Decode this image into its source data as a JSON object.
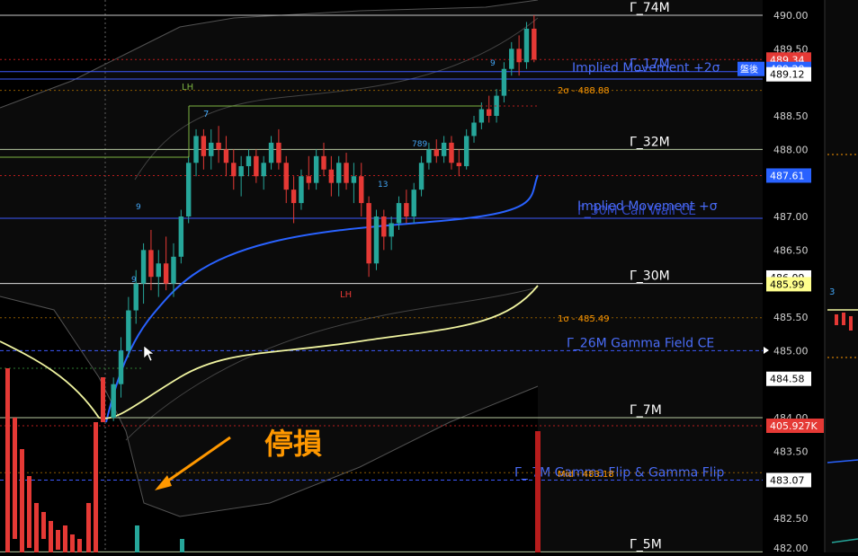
{
  "chart_data": {
    "type": "candlestick",
    "y_axis": {
      "min": 481.95,
      "max": 490.1,
      "position": "right",
      "ticks": [
        "490.00",
        "489.50",
        "488.50",
        "488.00",
        "487.61",
        "487.00",
        "486.50",
        "486.09",
        "485.99",
        "485.50",
        "485.00",
        "484.58",
        "484.00",
        "483.50",
        "483.07",
        "482.50"
      ],
      "tick_values": [
        490.0,
        489.5,
        488.5,
        488.0,
        487.61,
        487.0,
        486.5,
        486.09,
        485.99,
        485.5,
        485.0,
        484.58,
        484.0,
        483.5,
        483.07,
        482.5
      ]
    },
    "price_badges": [
      {
        "label": "489.34",
        "value": 489.34,
        "bg": "#e53935",
        "fg": "#ffffff"
      },
      {
        "label": "489.20",
        "value": 489.2,
        "bg": "#2962ff",
        "fg": "#ffffff",
        "tag": "盤後"
      },
      {
        "label": "489.12",
        "value": 489.12,
        "bg": "#ffffff",
        "fg": "#000000"
      },
      {
        "label": "487.61",
        "value": 487.61,
        "bg": "#2962ff",
        "fg": "#ffffff"
      },
      {
        "label": "486.09",
        "value": 486.09,
        "bg": "#ffffff",
        "fg": "#000000"
      },
      {
        "label": "485.99",
        "value": 485.99,
        "bg": "#ffff8d",
        "fg": "#000000"
      },
      {
        "label": "484.58",
        "value": 484.58,
        "bg": "#ffffff",
        "fg": "#000000"
      },
      {
        "label": "405.927K",
        "value": 483.88,
        "bg": "#e53935",
        "fg": "#ffffff"
      },
      {
        "label": "483.07",
        "value": 483.07,
        "bg": "#ffffff",
        "fg": "#000000"
      }
    ],
    "levels": [
      {
        "label": "Γ_74M",
        "value": 490.0,
        "color": "#c8c8c8",
        "style": "solid",
        "text_color": "#ffffff"
      },
      {
        "label": "Γ_17M",
        "value": 489.16,
        "color": "#3d5afe",
        "style": "solid",
        "text_color": "#4a6cf7"
      },
      {
        "label": "Γ_32M",
        "value": 488.0,
        "color": "#b7c9a0",
        "style": "solid",
        "text_color": "#ffffff"
      },
      {
        "label": "Γ_30M",
        "value": 486.0,
        "color": "#dddddd",
        "style": "solid",
        "text_color": "#ffffff"
      },
      {
        "label": "Γ_26M  Gamma Field CE",
        "value": 485.0,
        "color": "#3d5afe",
        "style": "dashed",
        "text_color": "#4a6cf7"
      },
      {
        "label": "Γ_7M",
        "value": 484.0,
        "color": "#b7c9a0",
        "style": "solid",
        "text_color": "#ffffff"
      },
      {
        "label": "Γ_ 7M  Gamma Flip & Gamma Flip",
        "value": 483.07,
        "color": "#3d5afe",
        "style": "dashed",
        "text_color": "#4a6cf7"
      },
      {
        "label": "Γ_5M",
        "value": 482.0,
        "color": "#b7c9a0",
        "style": "solid",
        "text_color": "#ffffff"
      }
    ],
    "overlay_labels": [
      {
        "label": "Implied Movement +2σ",
        "value": 489.34,
        "color": "#4a6cf7"
      },
      {
        "label": "Implied Movement +σ",
        "value": 487.12,
        "color": "#4a6cf7"
      },
      {
        "label": "Γ_30M  Call Wall CE",
        "value": 487.03,
        "color": "#3d5afe"
      }
    ],
    "sigma_labels": [
      {
        "label": "2σ - 488.88",
        "value": 488.88,
        "color": "#ff9800"
      },
      {
        "label": "1σ - 485.49",
        "value": 485.49,
        "color": "#ff9800"
      },
      {
        "label": "Mid - 483.18",
        "value": 483.18,
        "color": "#ff9800"
      }
    ],
    "marker_labels": [
      {
        "label": "LH",
        "color": "#7cb342"
      },
      {
        "label": "LH",
        "color": "#e53935"
      },
      {
        "label": "7",
        "color": "#42a5f5"
      },
      {
        "label": "9",
        "color": "#42a5f5"
      },
      {
        "label": "9",
        "color": "#42a5f5"
      },
      {
        "label": "13",
        "color": "#42a5f5"
      },
      {
        "label": "789",
        "color": "#42a5f5"
      },
      {
        "label": "9",
        "color": "#42a5f5"
      },
      {
        "label": "3",
        "color": "#42a5f5"
      }
    ],
    "annotation": {
      "text": "停損",
      "color": "#ff9800"
    },
    "candles": [
      {
        "o": 484.0,
        "h": 484.6,
        "l": 483.95,
        "c": 484.5
      },
      {
        "o": 484.5,
        "h": 485.2,
        "l": 484.3,
        "c": 485.0
      },
      {
        "o": 485.0,
        "h": 485.8,
        "l": 484.9,
        "c": 485.6
      },
      {
        "o": 485.6,
        "h": 486.2,
        "l": 485.4,
        "c": 486.0
      },
      {
        "o": 486.0,
        "h": 486.6,
        "l": 485.7,
        "c": 486.5
      },
      {
        "o": 486.5,
        "h": 486.8,
        "l": 485.9,
        "c": 486.1
      },
      {
        "o": 486.1,
        "h": 486.5,
        "l": 485.8,
        "c": 486.3
      },
      {
        "o": 486.3,
        "h": 486.7,
        "l": 485.9,
        "c": 486.0
      },
      {
        "o": 486.0,
        "h": 486.6,
        "l": 485.8,
        "c": 486.4
      },
      {
        "o": 486.4,
        "h": 487.1,
        "l": 486.3,
        "c": 487.0
      },
      {
        "o": 487.0,
        "h": 487.9,
        "l": 486.9,
        "c": 487.8
      },
      {
        "o": 487.8,
        "h": 488.3,
        "l": 487.6,
        "c": 488.2
      },
      {
        "o": 488.2,
        "h": 488.3,
        "l": 487.7,
        "c": 487.9
      },
      {
        "o": 487.9,
        "h": 488.3,
        "l": 487.7,
        "c": 488.1
      },
      {
        "o": 488.1,
        "h": 488.35,
        "l": 487.8,
        "c": 488.0
      },
      {
        "o": 488.0,
        "h": 488.2,
        "l": 487.6,
        "c": 487.8
      },
      {
        "o": 487.8,
        "h": 488.0,
        "l": 487.4,
        "c": 487.6
      },
      {
        "o": 487.6,
        "h": 487.9,
        "l": 487.3,
        "c": 487.75
      },
      {
        "o": 487.75,
        "h": 488.0,
        "l": 487.6,
        "c": 487.9
      },
      {
        "o": 487.9,
        "h": 488.0,
        "l": 487.5,
        "c": 487.6
      },
      {
        "o": 487.6,
        "h": 487.9,
        "l": 487.4,
        "c": 487.8
      },
      {
        "o": 487.8,
        "h": 488.2,
        "l": 487.7,
        "c": 488.1
      },
      {
        "o": 488.1,
        "h": 488.3,
        "l": 487.7,
        "c": 487.8
      },
      {
        "o": 487.8,
        "h": 487.9,
        "l": 487.2,
        "c": 487.4
      },
      {
        "o": 487.4,
        "h": 487.6,
        "l": 486.9,
        "c": 487.2
      },
      {
        "o": 487.2,
        "h": 487.7,
        "l": 487.1,
        "c": 487.6
      },
      {
        "o": 487.6,
        "h": 487.9,
        "l": 487.4,
        "c": 487.5
      },
      {
        "o": 487.5,
        "h": 488.0,
        "l": 487.4,
        "c": 487.9
      },
      {
        "o": 487.9,
        "h": 488.1,
        "l": 487.6,
        "c": 487.7
      },
      {
        "o": 487.7,
        "h": 487.9,
        "l": 487.3,
        "c": 487.5
      },
      {
        "o": 487.5,
        "h": 487.9,
        "l": 487.3,
        "c": 487.8
      },
      {
        "o": 487.8,
        "h": 487.95,
        "l": 487.4,
        "c": 487.5
      },
      {
        "o": 487.5,
        "h": 487.8,
        "l": 487.2,
        "c": 487.6
      },
      {
        "o": 487.6,
        "h": 487.8,
        "l": 487.0,
        "c": 487.2
      },
      {
        "o": 487.2,
        "h": 487.3,
        "l": 486.1,
        "c": 486.3
      },
      {
        "o": 486.3,
        "h": 487.1,
        "l": 486.2,
        "c": 487.0
      },
      {
        "o": 487.0,
        "h": 487.1,
        "l": 486.5,
        "c": 486.7
      },
      {
        "o": 486.7,
        "h": 487.0,
        "l": 486.5,
        "c": 486.9
      },
      {
        "o": 486.9,
        "h": 487.3,
        "l": 486.8,
        "c": 487.2
      },
      {
        "o": 487.2,
        "h": 487.4,
        "l": 486.9,
        "c": 487.0
      },
      {
        "o": 487.0,
        "h": 487.5,
        "l": 486.9,
        "c": 487.4
      },
      {
        "o": 487.4,
        "h": 487.9,
        "l": 487.3,
        "c": 487.8
      },
      {
        "o": 487.8,
        "h": 488.1,
        "l": 487.7,
        "c": 488.0
      },
      {
        "o": 488.0,
        "h": 488.15,
        "l": 487.8,
        "c": 487.9
      },
      {
        "o": 487.9,
        "h": 488.2,
        "l": 487.8,
        "c": 488.1
      },
      {
        "o": 488.1,
        "h": 488.2,
        "l": 487.7,
        "c": 487.8
      },
      {
        "o": 487.8,
        "h": 488.0,
        "l": 487.6,
        "c": 487.75
      },
      {
        "o": 487.75,
        "h": 488.3,
        "l": 487.7,
        "c": 488.2
      },
      {
        "o": 488.2,
        "h": 488.5,
        "l": 488.1,
        "c": 488.4
      },
      {
        "o": 488.4,
        "h": 488.7,
        "l": 488.3,
        "c": 488.6
      },
      {
        "o": 488.6,
        "h": 488.8,
        "l": 488.4,
        "c": 488.5
      },
      {
        "o": 488.5,
        "h": 488.9,
        "l": 488.4,
        "c": 488.8
      },
      {
        "o": 488.8,
        "h": 489.3,
        "l": 488.7,
        "c": 489.2
      },
      {
        "o": 489.2,
        "h": 489.6,
        "l": 489.1,
        "c": 489.5
      },
      {
        "o": 489.5,
        "h": 489.7,
        "l": 489.1,
        "c": 489.3
      },
      {
        "o": 489.3,
        "h": 489.9,
        "l": 489.2,
        "c": 489.8
      },
      {
        "o": 489.8,
        "h": 490.0,
        "l": 489.3,
        "c": 489.34
      }
    ],
    "grid": false,
    "legend": "none"
  }
}
